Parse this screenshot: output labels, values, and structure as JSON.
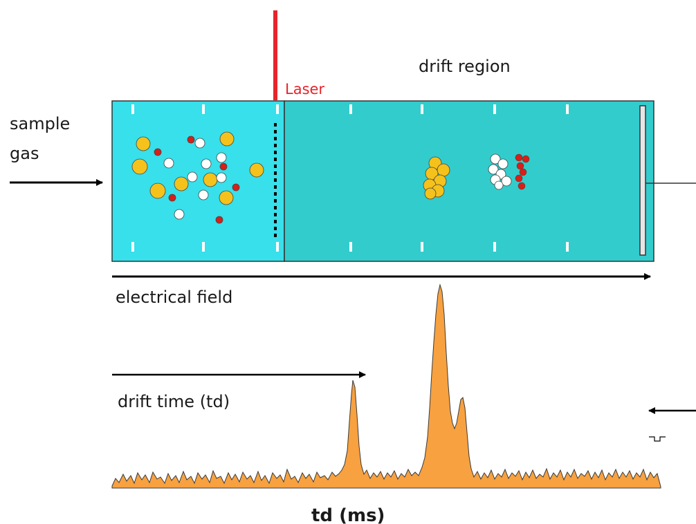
{
  "labels": {
    "sample_gas_line1": "sample",
    "sample_gas_line2": "gas",
    "laser": "Laser",
    "drift_region": "drift region",
    "electrical_field": "electrical field",
    "drift_time": "drift time (td)",
    "axis_label": "td (ms)"
  },
  "colors": {
    "ionization_region": "#37e0ea",
    "drift_region": "#33cccc",
    "laser": "#e8232a",
    "ion_yellow": "#f5c21b",
    "ion_white": "#ffffff",
    "ion_red": "#d91e18",
    "spectrum_fill": "#f7a140",
    "spectrum_line": "#3a3a3a"
  }
}
